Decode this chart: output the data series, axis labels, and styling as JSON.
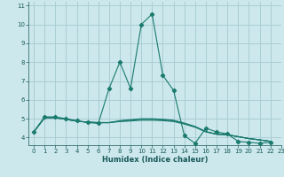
{
  "title": "",
  "xlabel": "Humidex (Indice chaleur)",
  "bg_color": "#cce8ec",
  "grid_color": "#aacdd4",
  "line_color": "#1a7a6e",
  "xlim": [
    -0.5,
    23
  ],
  "ylim": [
    3.6,
    11.2
  ],
  "xticks": [
    0,
    1,
    2,
    3,
    4,
    5,
    6,
    7,
    8,
    9,
    10,
    11,
    12,
    13,
    14,
    15,
    16,
    17,
    18,
    19,
    20,
    21,
    22,
    23
  ],
  "yticks": [
    4,
    5,
    6,
    7,
    8,
    9,
    10,
    11
  ],
  "curves": [
    {
      "x": [
        0,
        1,
        2,
        3,
        4,
        5,
        6,
        7,
        8,
        9,
        10,
        11,
        12,
        13,
        14,
        15,
        16,
        17,
        18,
        19,
        20,
        21,
        22
      ],
      "y": [
        4.3,
        5.1,
        5.1,
        5.0,
        4.9,
        4.8,
        4.75,
        6.6,
        8.0,
        6.6,
        10.0,
        10.55,
        7.3,
        6.5,
        4.1,
        3.7,
        4.5,
        4.3,
        4.2,
        3.8,
        3.75,
        3.7,
        3.75
      ],
      "has_markers": true
    },
    {
      "x": [
        0,
        1,
        2,
        3,
        4,
        5,
        6,
        7,
        8,
        9,
        10,
        11,
        12,
        13,
        14,
        15,
        16,
        17,
        18,
        19,
        20,
        21,
        22
      ],
      "y": [
        4.3,
        5.05,
        5.05,
        4.97,
        4.87,
        4.82,
        4.8,
        4.8,
        4.85,
        4.88,
        4.92,
        4.92,
        4.9,
        4.85,
        4.72,
        4.55,
        4.3,
        4.18,
        4.15,
        4.05,
        3.95,
        3.88,
        3.8
      ],
      "has_markers": false
    },
    {
      "x": [
        0,
        1,
        2,
        3,
        4,
        5,
        6,
        7,
        8,
        9,
        10,
        11,
        12,
        13,
        14,
        15,
        16,
        17,
        18,
        19,
        20,
        21,
        22
      ],
      "y": [
        4.3,
        5.05,
        5.05,
        4.97,
        4.87,
        4.82,
        4.79,
        4.79,
        4.87,
        4.92,
        4.97,
        4.97,
        4.94,
        4.89,
        4.75,
        4.57,
        4.32,
        4.18,
        4.15,
        4.05,
        3.95,
        3.88,
        3.8
      ],
      "has_markers": false
    },
    {
      "x": [
        0,
        1,
        2,
        3,
        4,
        5,
        6,
        7,
        8,
        9,
        10,
        11,
        12,
        13,
        14,
        15,
        16,
        17,
        18,
        19,
        20,
        21,
        22
      ],
      "y": [
        4.3,
        5.05,
        5.05,
        4.97,
        4.87,
        4.82,
        4.79,
        4.79,
        4.9,
        4.95,
        5.0,
        5.0,
        4.97,
        4.92,
        4.77,
        4.59,
        4.32,
        4.18,
        4.15,
        4.05,
        3.95,
        3.88,
        3.8
      ],
      "has_markers": false
    }
  ],
  "xlabel_fontsize": 6.0,
  "tick_fontsize": 5.0,
  "tick_color": "#1a5a5a",
  "spine_color": "#1a5a5a"
}
